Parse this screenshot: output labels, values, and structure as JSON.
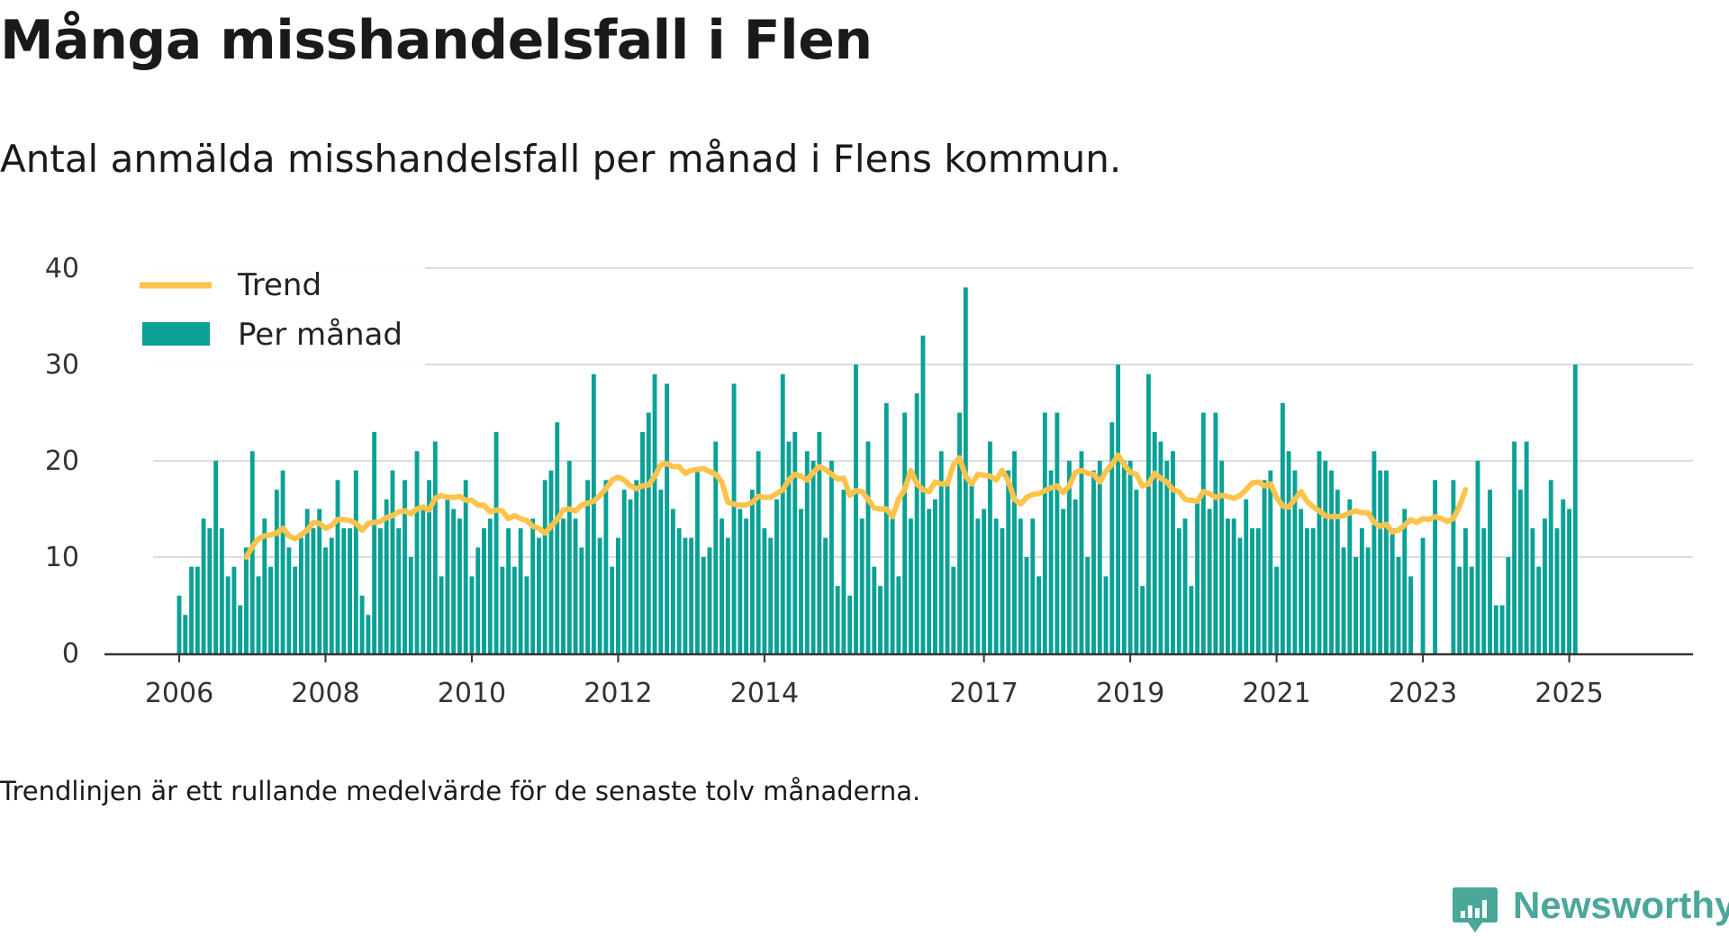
{
  "title": "Många misshandelsfall i Flen",
  "subtitle": "Antal anmälda misshandelsfall per månad i Flens kommun.",
  "footnote": "Trendlinjen är ett rullande medelvärde för de senaste tolv månaderna.",
  "brand": "Newsworthy",
  "colors": {
    "bars": "#0aa196",
    "trend": "#ffc34b",
    "grid": "#dcdcdc",
    "axis": "#333333",
    "brand": "#4aa79a"
  },
  "chart_data": {
    "type": "bar",
    "title": "Många misshandelsfall i Flen",
    "ylim": [
      0,
      40
    ],
    "yticks": [
      0,
      10,
      20,
      30,
      40
    ],
    "xtick_labels": [
      "2006",
      "2008",
      "2010",
      "2012",
      "2014",
      "2017",
      "2019",
      "2021",
      "2023",
      "2025"
    ],
    "x_start": "2006-01",
    "legend": {
      "position": "top-left",
      "entries": [
        "Trend",
        "Per månad"
      ]
    },
    "grid": true,
    "series": [
      {
        "name": "Per månad",
        "type": "bar",
        "values": [
          6,
          4,
          9,
          9,
          14,
          13,
          20,
          13,
          8,
          9,
          5,
          11,
          21,
          8,
          14,
          9,
          17,
          19,
          11,
          9,
          12,
          15,
          13,
          15,
          11,
          12,
          18,
          13,
          13,
          19,
          6,
          4,
          23,
          13,
          16,
          19,
          13,
          18,
          10,
          21,
          15,
          18,
          22,
          8,
          16,
          15,
          14,
          18,
          8,
          11,
          13,
          14,
          23,
          9,
          13,
          9,
          13,
          8,
          14,
          12,
          18,
          19,
          24,
          14,
          20,
          14,
          11,
          18,
          29,
          12,
          18,
          9,
          12,
          17,
          16,
          18,
          23,
          25,
          29,
          17,
          28,
          15,
          13,
          12,
          12,
          19,
          10,
          11,
          22,
          14,
          12,
          28,
          15,
          14,
          17,
          21,
          13,
          12,
          16,
          29,
          22,
          23,
          15,
          21,
          20,
          23,
          12,
          20,
          7,
          17,
          6,
          30,
          14,
          22,
          9,
          7,
          26,
          14,
          8,
          25,
          14,
          27,
          33,
          15,
          16,
          21,
          18,
          9,
          25,
          38,
          18,
          14,
          15,
          22,
          14,
          13,
          19,
          21,
          14,
          10,
          14,
          8,
          25,
          19,
          25,
          15,
          20,
          16,
          21,
          10,
          19,
          20,
          8,
          24,
          30,
          20,
          20,
          17,
          7,
          29,
          23,
          22,
          20,
          21,
          13,
          14,
          7,
          16,
          25,
          15,
          25,
          20,
          14,
          14,
          12,
          16,
          13,
          13,
          18,
          19,
          9,
          26,
          21,
          19,
          15,
          13,
          13,
          21,
          20,
          19,
          17,
          11,
          16,
          10,
          13,
          11,
          21,
          19,
          19,
          13,
          10,
          15,
          8,
          null,
          12,
          0,
          18,
          null,
          null,
          18,
          9,
          13,
          9,
          20,
          13,
          17,
          5,
          5,
          10,
          22,
          17,
          22,
          13,
          9,
          14,
          18,
          13,
          16,
          15,
          30
        ],
        "color": "#0aa196"
      },
      {
        "name": "Trend",
        "type": "line",
        "start_index": 11,
        "values": [
          10,
          11.1,
          11.9,
          12.2,
          12.3,
          12.5,
          13,
          12.2,
          11.9,
          12.3,
          12.8,
          13.6,
          13.5,
          13.0,
          13.3,
          13.9,
          13.9,
          13.8,
          13.5,
          12.8,
          13.5,
          13.6,
          13.7,
          14.1,
          14.3,
          14.7,
          14.8,
          14.5,
          15.0,
          15.2,
          14.9,
          16.1,
          16.4,
          16.2,
          16.2,
          16.3,
          15.9,
          15.9,
          15.4,
          15.4,
          14.7,
          14.9,
          14.8,
          14.0,
          14.3,
          14.0,
          13.8,
          13.2,
          13.0,
          12.5,
          13.2,
          13.9,
          14.9,
          15.0,
          14.8,
          15.4,
          15.6,
          15.8,
          16.4,
          17.1,
          18.0,
          18.3,
          18.0,
          17.4,
          17.1,
          17.4,
          17.5,
          18.4,
          19.6,
          19.7,
          19.4,
          19.4,
          18.7,
          19.0,
          19.1,
          19.2,
          18.9,
          18.6,
          17.8,
          15.7,
          15.5,
          15.4,
          15.4,
          15.7,
          16.3,
          16.2,
          16.2,
          16.6,
          17.0,
          18.0,
          18.6,
          18.4,
          18.0,
          18.8,
          19.4,
          19.1,
          18.6,
          18.1,
          18.2,
          16.4,
          16.9,
          16.8,
          16.0,
          15.1,
          15.0,
          15.0,
          14.2,
          16.0,
          17.0,
          19.0,
          17.6,
          17.0,
          16.8,
          17.8,
          17.6,
          17.6,
          19.6,
          20.3,
          18.4,
          17.6,
          18.6,
          18.5,
          18.4,
          18.0,
          19.0,
          17.9,
          16.0,
          15.5,
          16.2,
          16.5,
          16.6,
          16.9,
          17.2,
          17.4,
          16.7,
          17.4,
          18.8,
          19.0,
          18.7,
          18.6,
          17.8,
          18.9,
          19.6,
          20.6,
          19.6,
          18.8,
          18.6,
          17.4,
          17.6,
          18.7,
          18.2,
          17.8,
          17.0,
          16.8,
          16.0,
          15.9,
          15.8,
          16.8,
          16.6,
          16.2,
          16.4,
          16.3,
          16.1,
          16.4,
          17.0,
          17.7,
          17.8,
          17.4,
          17.6,
          16.2,
          15.3,
          15.2,
          16.0,
          16.8,
          15.8,
          15.2,
          14.8,
          14.3,
          14.2,
          14.2,
          14.3,
          14.6,
          14.8,
          14.6,
          14.6,
          13.6,
          13.2,
          13.4,
          12.6,
          12.8,
          13.3,
          13.9,
          13.6,
          14.0,
          13.9,
          14.2,
          14.0,
          13.7,
          14.0,
          15.3,
          17.0
        ]
      }
    ]
  }
}
